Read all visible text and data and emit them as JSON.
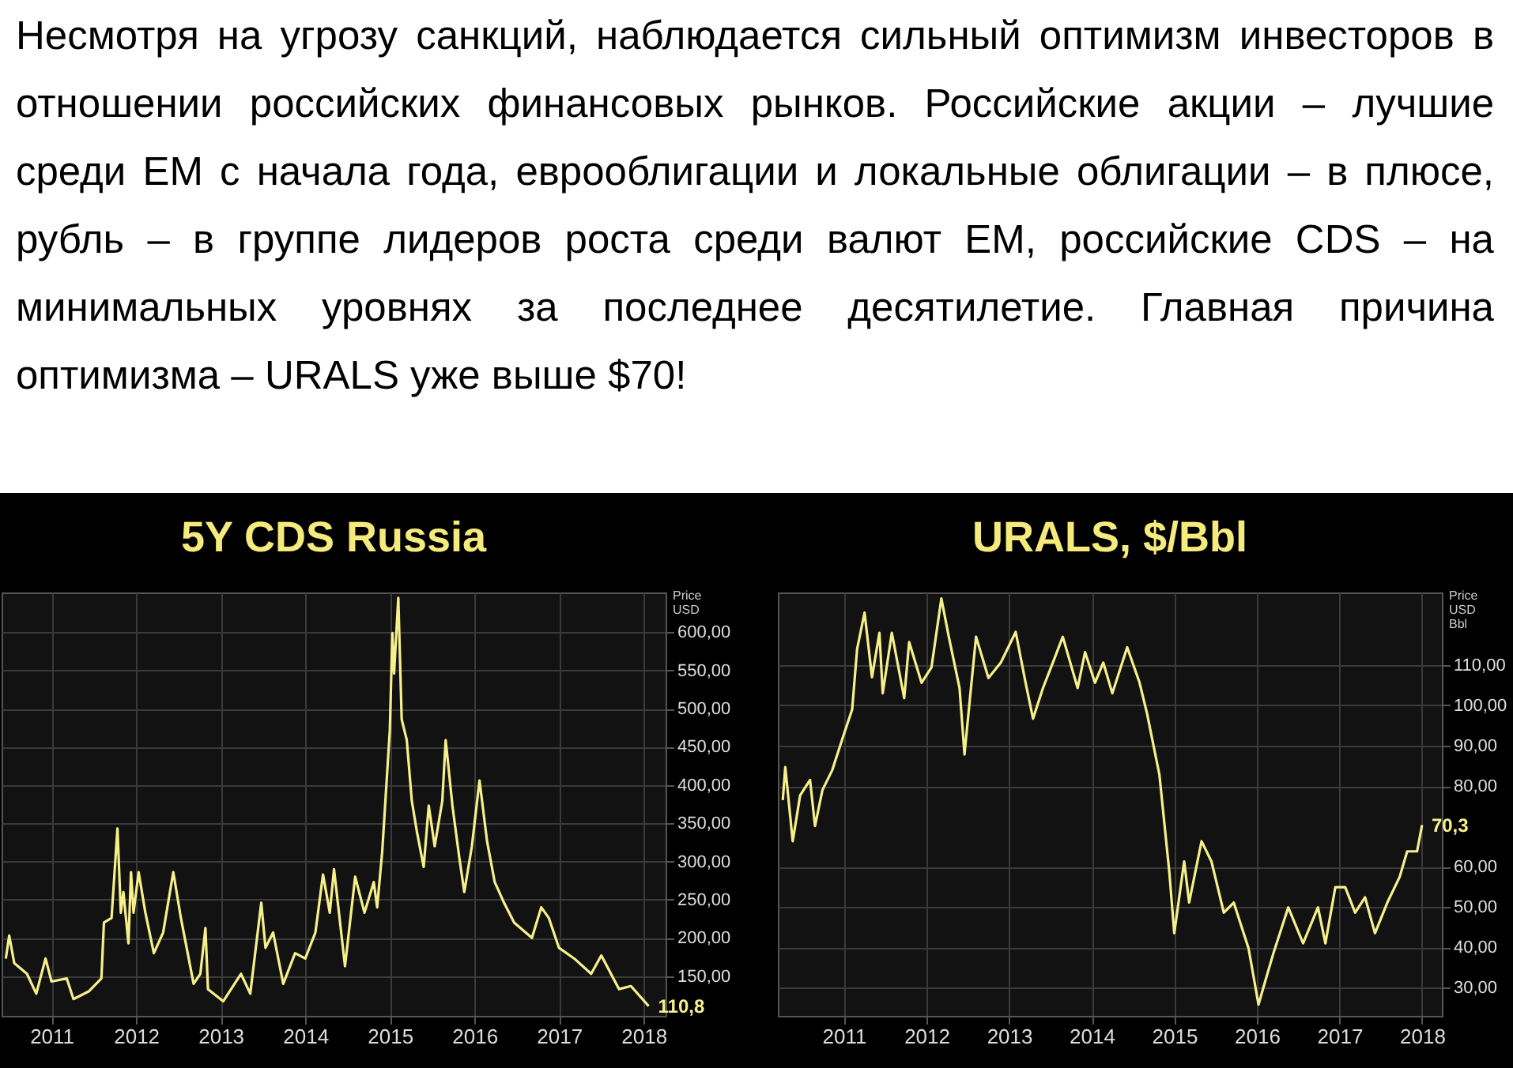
{
  "chart_data": [
    {
      "type": "other",
      "annotations": [
        "Несмотря на угрозу санкций, наблюдается сильный оптимизм инвесторов в отношении российских финансовых рынков. Российские акции – лучшие среди EM с начала года, еврооблигации и локальные облигации – в плюсе, рубль – в группе лидеров роста среди валют EM, российские CDS – на минимальных уровнях за последнее десятилетие. Главная причина оптимизма – URALS уже выше $70!"
      ]
    },
    {
      "type": "line",
      "title": "5Y CDS Russia",
      "ylabel": "Price USD",
      "color": "#f7f08a",
      "grid": true,
      "x": [
        2010.46,
        2010.5,
        2010.56,
        2010.71,
        2010.82,
        2010.93,
        2011.0,
        2011.18,
        2011.26,
        2011.44,
        2011.59,
        2011.62,
        2011.71,
        2011.78,
        2011.82,
        2011.85,
        2011.91,
        2011.94,
        2011.97,
        2012.03,
        2012.11,
        2012.21,
        2012.32,
        2012.44,
        2012.53,
        2012.68,
        2012.76,
        2012.82,
        2012.85,
        2013.03,
        2013.24,
        2013.35,
        2013.48,
        2013.53,
        2013.62,
        2013.74,
        2013.88,
        2014.0,
        2014.12,
        2014.21,
        2014.29,
        2014.34,
        2014.47,
        2014.59,
        2014.7,
        2014.81,
        2014.85,
        2014.91,
        2015.0,
        2015.03,
        2015.05,
        2015.1,
        2015.14,
        2015.2,
        2015.26,
        2015.32,
        2015.4,
        2015.46,
        2015.53,
        2015.62,
        2015.66,
        2015.74,
        2015.82,
        2015.88,
        2015.97,
        2016.06,
        2016.15,
        2016.24,
        2016.35,
        2016.47,
        2016.68,
        2016.79,
        2016.88,
        2017.0,
        2017.18,
        2017.38,
        2017.5,
        2017.71,
        2017.85,
        2018.06
      ],
      "values": [
        173,
        203,
        167,
        153,
        127,
        173,
        143,
        147,
        120,
        130,
        147,
        220,
        226,
        343,
        233,
        260,
        193,
        286,
        233,
        286,
        233,
        180,
        207,
        286,
        226,
        140,
        153,
        213,
        133,
        117,
        153,
        127,
        246,
        187,
        207,
        140,
        180,
        173,
        207,
        283,
        233,
        290,
        163,
        280,
        233,
        273,
        240,
        313,
        472,
        599,
        546,
        645,
        486,
        459,
        379,
        339,
        293,
        373,
        320,
        379,
        459,
        373,
        306,
        260,
        320,
        406,
        326,
        273,
        246,
        220,
        200,
        240,
        226,
        187,
        173,
        153,
        177,
        133,
        137,
        110.8
      ],
      "xlim": [
        2010.41,
        2018.26
      ],
      "xticks": [
        2011,
        2012,
        2013,
        2014,
        2015,
        2016,
        2017,
        2018
      ],
      "ylim": [
        98,
        652
      ],
      "yticks": [
        {
          "value": 150,
          "label": "150,00"
        },
        {
          "value": 200,
          "label": "200,00"
        },
        {
          "value": 250,
          "label": "250,00"
        },
        {
          "value": 300,
          "label": "300,00"
        },
        {
          "value": 350,
          "label": "350,00"
        },
        {
          "value": 400,
          "label": "400,00"
        },
        {
          "value": 450,
          "label": "450,00"
        },
        {
          "value": 500,
          "label": "500,00"
        },
        {
          "value": 550,
          "label": "550,00"
        },
        {
          "value": 600,
          "label": "600,00"
        }
      ],
      "annotations": [
        {
          "text": "110,8",
          "x": 2018.06,
          "y": 110.8
        }
      ]
    },
    {
      "type": "line",
      "title": "URALS, $/Bbl",
      "ylabel": "Price USD Bbl",
      "color": "#f7f08a",
      "grid": true,
      "x": [
        2010.26,
        2010.29,
        2010.38,
        2010.47,
        2010.59,
        2010.65,
        2010.74,
        2010.86,
        2010.98,
        2011.1,
        2011.16,
        2011.25,
        2011.34,
        2011.43,
        2011.47,
        2011.58,
        2011.73,
        2011.79,
        2011.94,
        2012.06,
        2012.18,
        2012.27,
        2012.4,
        2012.46,
        2012.52,
        2012.6,
        2012.75,
        2012.9,
        2013.08,
        2013.2,
        2013.29,
        2013.41,
        2013.53,
        2013.65,
        2013.83,
        2013.92,
        2014.04,
        2014.14,
        2014.25,
        2014.43,
        2014.58,
        2014.67,
        2014.82,
        2014.94,
        2015.0,
        2015.12,
        2015.18,
        2015.33,
        2015.45,
        2015.6,
        2015.72,
        2015.9,
        2016.02,
        2016.11,
        2016.2,
        2016.38,
        2016.56,
        2016.74,
        2016.83,
        2016.95,
        2017.07,
        2017.19,
        2017.31,
        2017.43,
        2017.58,
        2017.73,
        2017.82,
        2017.94,
        2018.0
      ],
      "values": [
        76.5,
        84.7,
        66.3,
        77.7,
        81.5,
        70.1,
        79,
        84,
        91.6,
        99,
        114,
        123,
        107,
        118,
        103,
        118,
        101.8,
        115.7,
        105.6,
        109.4,
        126.5,
        117,
        104.3,
        87.8,
        100.5,
        117,
        106.8,
        110.6,
        118.2,
        105.6,
        96.7,
        104.3,
        110.6,
        117,
        104.3,
        113.2,
        105.6,
        110.6,
        103,
        114.4,
        105.6,
        98,
        82.8,
        58.7,
        43.5,
        61.3,
        51.1,
        66.3,
        61.3,
        48.6,
        51.1,
        39.7,
        25.8,
        32.2,
        38.5,
        49.9,
        41,
        49.9,
        41,
        54.9,
        54.9,
        48.6,
        52.4,
        43.5,
        51.1,
        57.5,
        63.8,
        63.8,
        70.3
      ],
      "xlim": [
        2010.2,
        2018.24
      ],
      "xticks": [
        2011,
        2012,
        2013,
        2014,
        2015,
        2016,
        2017,
        2018
      ],
      "ylim": [
        23,
        128
      ],
      "yticks": [
        {
          "value": 30,
          "label": "30,00"
        },
        {
          "value": 40,
          "label": "40,00"
        },
        {
          "value": 50,
          "label": "50,00"
        },
        {
          "value": 60,
          "label": "60,00"
        },
        {
          "value": 80,
          "label": "80,00"
        },
        {
          "value": 90,
          "label": "90,00"
        },
        {
          "value": 100,
          "label": "100,00"
        },
        {
          "value": 110,
          "label": "110,00"
        }
      ],
      "annotations": [
        {
          "text": "70,3",
          "x": 2018.0,
          "y": 70.3
        }
      ]
    }
  ]
}
